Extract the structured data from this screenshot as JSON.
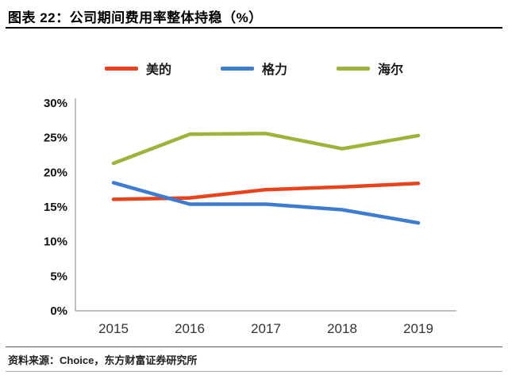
{
  "header": {
    "title": "图表 22：公司期间费用率整体持稳（%）"
  },
  "footer": {
    "source": "资料来源：Choice，东方财富证券研究所"
  },
  "chart_data": {
    "type": "line",
    "title": "公司期间费用率整体持稳（%）",
    "x": [
      "2015",
      "2016",
      "2017",
      "2018",
      "2019"
    ],
    "series": [
      {
        "name": "美的",
        "color": "#e8431d",
        "values": [
          16.1,
          16.3,
          17.5,
          17.9,
          18.4
        ]
      },
      {
        "name": "格力",
        "color": "#3e7cd0",
        "values": [
          18.5,
          15.4,
          15.4,
          14.6,
          12.7
        ]
      },
      {
        "name": "海尔",
        "color": "#a0b23a",
        "values": [
          21.3,
          25.5,
          25.6,
          23.4,
          25.3
        ]
      }
    ],
    "ylim": [
      0,
      30
    ],
    "ytick_step": 5,
    "ytick_suffix": "%",
    "legend_position": "top",
    "grid": false,
    "axis_color": "#808080",
    "line_width": 4.5
  }
}
